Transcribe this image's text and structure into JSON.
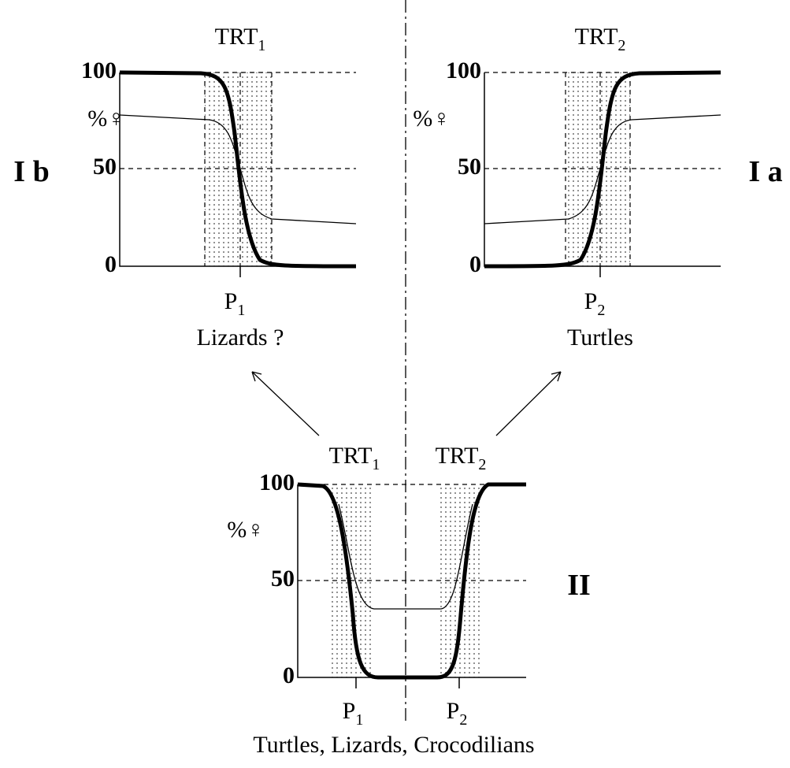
{
  "panels": [
    {
      "label": "I b",
      "title": "TRT",
      "title_sub": "1",
      "ylabel": "%♀",
      "yticks": [
        "100",
        "50",
        "0"
      ],
      "pivot": "P",
      "pivot_sub": "1",
      "caption": "Lizards ?"
    },
    {
      "label": "I a",
      "title": "TRT",
      "title_sub": "2",
      "ylabel": "%♀",
      "yticks": [
        "100",
        "50",
        "0"
      ],
      "pivot": "P",
      "pivot_sub": "2",
      "caption": "Turtles"
    }
  ],
  "bottom": {
    "label": "II",
    "titles": [
      {
        "text": "TRT",
        "sub": "1"
      },
      {
        "text": "TRT",
        "sub": "2"
      }
    ],
    "ylabel": "%♀",
    "yticks": [
      "100",
      "50",
      "0"
    ],
    "pivots": [
      {
        "text": "P",
        "sub": "1"
      },
      {
        "text": "P",
        "sub": "2"
      }
    ],
    "caption": "Turtles, Lizards, Crocodilians"
  }
}
